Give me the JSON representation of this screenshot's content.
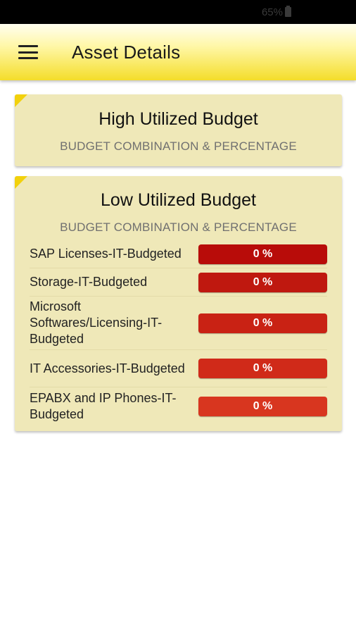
{
  "status_bar": {
    "battery": "65%"
  },
  "app_bar": {
    "title": "Asset Details"
  },
  "high_card": {
    "title": "High Utilized Budget",
    "subtitle": "BUDGET COMBINATION & PERCENTAGE"
  },
  "low_card": {
    "title": "Low Utilized Budget",
    "subtitle": "BUDGET COMBINATION & PERCENTAGE",
    "rows": [
      {
        "label": "SAP Licenses-IT-Budgeted",
        "value": "0 %",
        "color": "#b80c09"
      },
      {
        "label": "Storage-IT-Budgeted",
        "value": "0 %",
        "color": "#bf180f"
      },
      {
        "label": "Microsoft Softwares/Licensing-IT-Budgeted",
        "value": "0 %",
        "color": "#c92214"
      },
      {
        "label": "IT Accessories-IT-Budgeted",
        "value": "0 %",
        "color": "#d02a19"
      },
      {
        "label": "EPABX and IP Phones-IT-Budgeted",
        "value": "0 %",
        "color": "#d8361f"
      }
    ]
  }
}
